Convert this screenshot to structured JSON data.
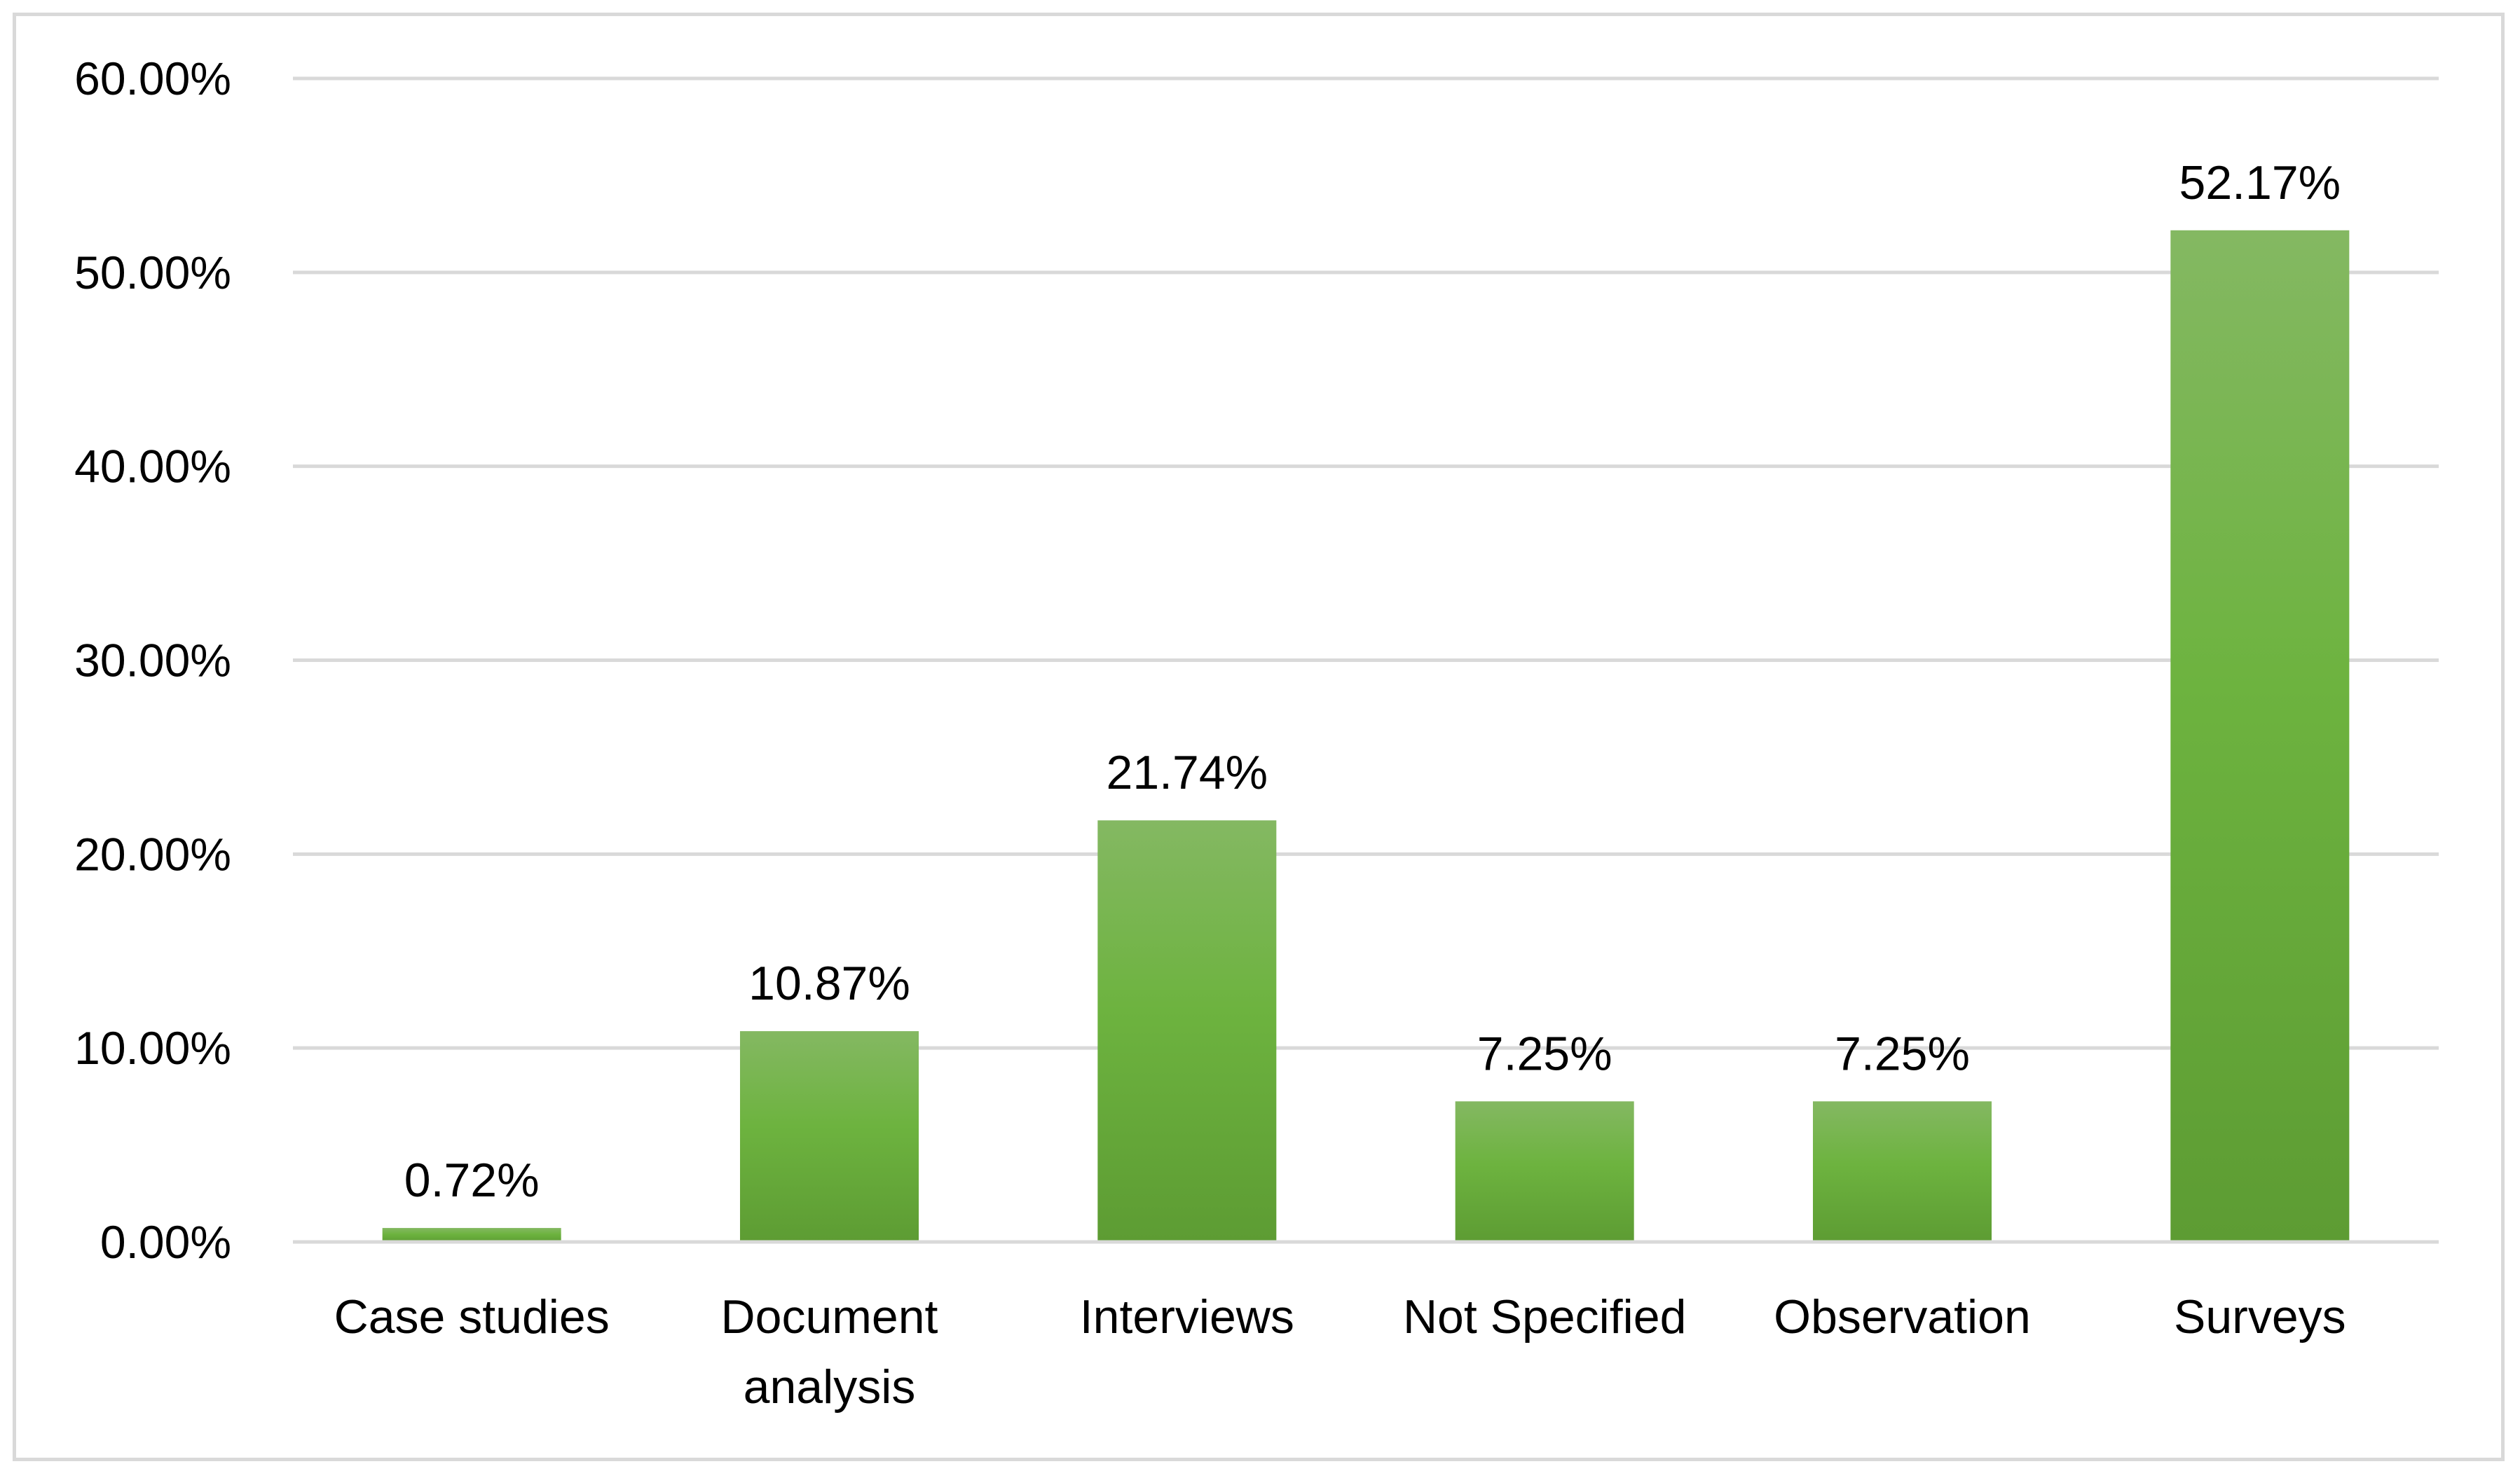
{
  "chart_data": {
    "type": "bar",
    "categories": [
      [
        "Case studies"
      ],
      [
        "Document",
        "analysis"
      ],
      [
        "Interviews"
      ],
      [
        "Not Specified"
      ],
      [
        "Observation"
      ],
      [
        "Surveys"
      ]
    ],
    "values": [
      0.72,
      10.87,
      21.74,
      7.25,
      7.25,
      52.17
    ],
    "data_labels": [
      "0.72%",
      "10.87%",
      "21.74%",
      "7.25%",
      "7.25%",
      "52.17%"
    ],
    "y_ticks": [
      "0.00%",
      "10.00%",
      "20.00%",
      "30.00%",
      "40.00%",
      "50.00%",
      "60.00%"
    ],
    "ylim": [
      0,
      60
    ],
    "title": "",
    "xlabel": "",
    "ylabel": "",
    "grid": true,
    "legend": "none",
    "colors": {
      "bar_top": "#84b862",
      "bar_mid": "#6db33f",
      "bar_bottom": "#5d9c33",
      "grid": "#d9d9d9",
      "frame": "#d9d9d9",
      "text": "#000000"
    }
  }
}
